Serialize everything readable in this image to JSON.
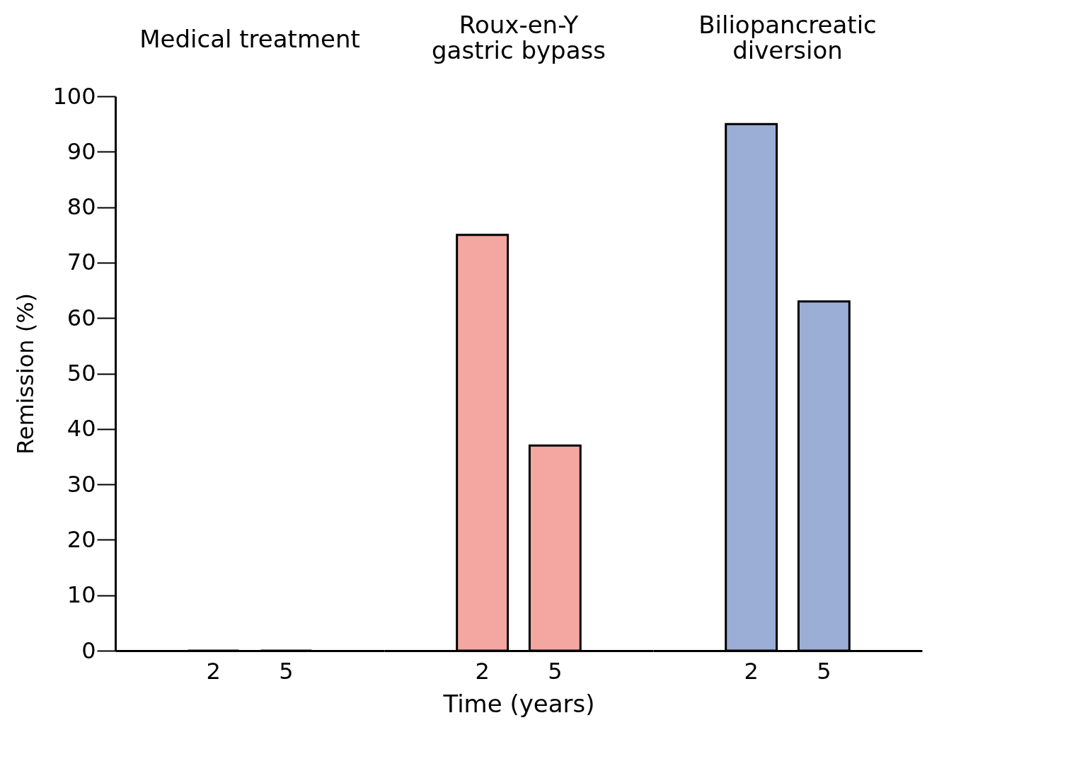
{
  "chart_data": [
    {
      "type": "bar",
      "title": "Medical treatment",
      "ylabel": "Remission (%)",
      "categories": [
        "2",
        "5"
      ],
      "values": [
        0,
        0
      ],
      "color": "#f4a7a1",
      "ylim": [
        0,
        100
      ],
      "yticks": [
        0,
        10,
        20,
        30,
        40,
        50,
        60,
        70,
        80,
        90,
        100
      ]
    },
    {
      "type": "bar",
      "title": "Roux-en-Y\ngastric bypass",
      "xlabel": "Time (years)",
      "categories": [
        "2",
        "5"
      ],
      "values": [
        75,
        37
      ],
      "color": "#f4a7a1",
      "ylim": [
        0,
        100
      ],
      "yticks": [
        0,
        10,
        20,
        30,
        40,
        50,
        60,
        70,
        80,
        90,
        100
      ],
      "tick_labels": "x"
    },
    {
      "type": "bar",
      "title": "Biliopancreatic\ndiversion",
      "categories": [
        "2",
        "5"
      ],
      "values": [
        95,
        63
      ],
      "color": "#9baed6",
      "ylim": [
        0,
        100
      ],
      "yticks": [
        0,
        10,
        20,
        30,
        40,
        50,
        60,
        70,
        80,
        90,
        100
      ],
      "tick_labels": "x"
    }
  ]
}
